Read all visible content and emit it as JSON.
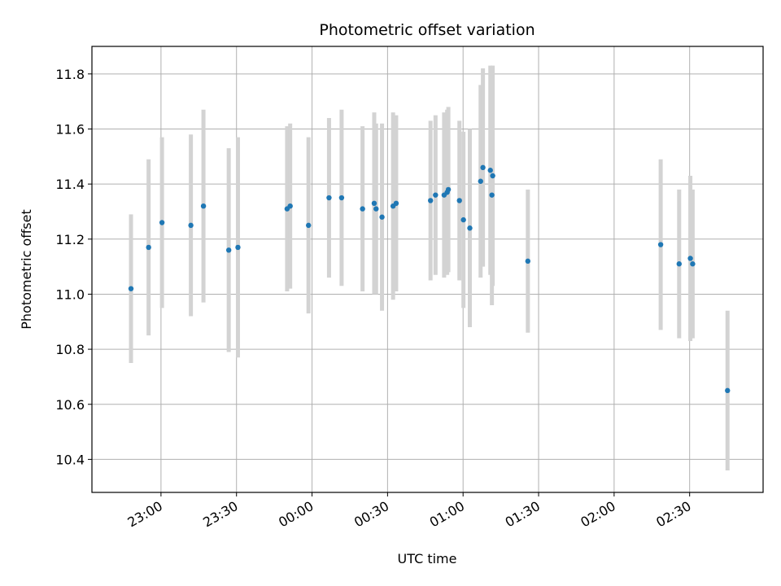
{
  "chart_data": {
    "type": "scatter",
    "title": "Photometric offset variation",
    "xlabel": "UTC time",
    "ylabel": "Photometric offset",
    "x_ticks": [
      "23:00",
      "23:30",
      "00:00",
      "00:30",
      "01:00",
      "01:30",
      "02:00",
      "02:30"
    ],
    "y_ticks": [
      "10.4",
      "10.6",
      "10.8",
      "11.0",
      "11.2",
      "11.4",
      "11.6",
      "11.8"
    ],
    "xlim": [
      "22:32:34",
      "02:59:11"
    ],
    "ylim": [
      10.28,
      11.9
    ],
    "grid": true,
    "marker_color": "#1f77b4",
    "errorbar_color": "#d3d3d3",
    "points": [
      {
        "x": "22:48:05",
        "y": 11.02,
        "err": 0.27
      },
      {
        "x": "22:55:05",
        "y": 11.17,
        "err": 0.32
      },
      {
        "x": "23:00:24",
        "y": 11.26,
        "err": 0.31
      },
      {
        "x": "23:11:52",
        "y": 11.25,
        "err": 0.33
      },
      {
        "x": "23:16:52",
        "y": 11.32,
        "err": 0.35
      },
      {
        "x": "23:26:55",
        "y": 11.16,
        "err": 0.37
      },
      {
        "x": "23:30:34",
        "y": 11.17,
        "err": 0.4
      },
      {
        "x": "23:50:06",
        "y": 11.31,
        "err": 0.3
      },
      {
        "x": "23:51:19",
        "y": 11.32,
        "err": 0.3
      },
      {
        "x": "23:58:36",
        "y": 11.25,
        "err": 0.32
      },
      {
        "x": "00:06:45",
        "y": 11.35,
        "err": 0.29
      },
      {
        "x": "00:11:45",
        "y": 11.35,
        "err": 0.32
      },
      {
        "x": "00:20:04",
        "y": 11.31,
        "err": 0.3
      },
      {
        "x": "00:24:42",
        "y": 11.33,
        "err": 0.33
      },
      {
        "x": "00:25:27",
        "y": 11.31,
        "err": 0.31
      },
      {
        "x": "00:27:48",
        "y": 11.28,
        "err": 0.34
      },
      {
        "x": "00:32:12",
        "y": 11.32,
        "err": 0.34
      },
      {
        "x": "00:33:25",
        "y": 11.33,
        "err": 0.32
      },
      {
        "x": "00:47:04",
        "y": 11.34,
        "err": 0.29
      },
      {
        "x": "00:49:03",
        "y": 11.36,
        "err": 0.29
      },
      {
        "x": "00:52:28",
        "y": 11.36,
        "err": 0.3
      },
      {
        "x": "00:53:41",
        "y": 11.37,
        "err": 0.3
      },
      {
        "x": "00:54:09",
        "y": 11.38,
        "err": 0.3
      },
      {
        "x": "00:58:33",
        "y": 11.34,
        "err": 0.29
      },
      {
        "x": "01:00:09",
        "y": 11.27,
        "err": 0.32
      },
      {
        "x": "01:02:41",
        "y": 11.24,
        "err": 0.36
      },
      {
        "x": "01:06:58",
        "y": 11.41,
        "err": 0.35
      },
      {
        "x": "01:07:53",
        "y": 11.46,
        "err": 0.36
      },
      {
        "x": "01:10:50",
        "y": 11.45,
        "err": 0.38
      },
      {
        "x": "01:11:27",
        "y": 11.36,
        "err": 0.4
      },
      {
        "x": "01:11:46",
        "y": 11.43,
        "err": 0.4
      },
      {
        "x": "01:25:44",
        "y": 11.12,
        "err": 0.26
      },
      {
        "x": "02:18:30",
        "y": 11.18,
        "err": 0.31
      },
      {
        "x": "02:25:50",
        "y": 11.11,
        "err": 0.27
      },
      {
        "x": "02:30:17",
        "y": 11.13,
        "err": 0.3
      },
      {
        "x": "02:31:12",
        "y": 11.11,
        "err": 0.27
      },
      {
        "x": "02:45:03",
        "y": 10.65,
        "err": 0.29
      }
    ]
  }
}
